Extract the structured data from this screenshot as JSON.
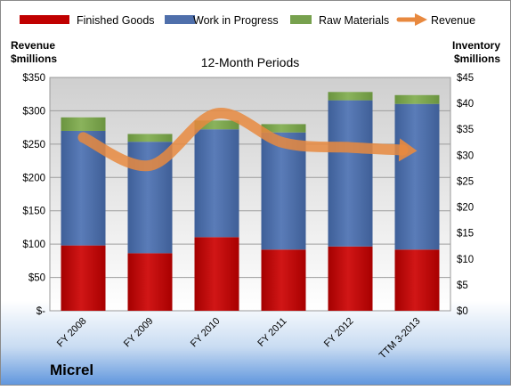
{
  "company": "Micrel",
  "chart_data": {
    "type": "bar",
    "title": "12-Month Periods",
    "left_axis": {
      "label_line1": "Revenue",
      "label_line2": "$millions",
      "range": [
        0,
        350
      ],
      "ticks": [
        0,
        50,
        100,
        150,
        200,
        250,
        300,
        350
      ],
      "tick_labels": [
        "$-",
        "$50",
        "$100",
        "$150",
        "$200",
        "$250",
        "$300",
        "$350"
      ]
    },
    "right_axis": {
      "label_line1": "Inventory",
      "label_line2": "$millions",
      "range": [
        0,
        45
      ],
      "ticks": [
        0,
        5,
        10,
        15,
        20,
        25,
        30,
        35,
        40,
        45
      ],
      "tick_labels": [
        "$0",
        "$5",
        "$10",
        "$15",
        "$20",
        "$25",
        "$30",
        "$35",
        "$40",
        "$45"
      ]
    },
    "categories": [
      "FY 2008",
      "FY 2009",
      "FY 2010",
      "FY 2011",
      "FY 2012",
      "TTM 3-2013"
    ],
    "series": [
      {
        "name": "Finished Goods",
        "kind": "stacked-bar",
        "axis": "right",
        "color": "#c00000",
        "values": [
          12.6,
          11.1,
          14.2,
          11.8,
          12.4,
          11.8
        ]
      },
      {
        "name": "Work in Progress",
        "kind": "stacked-bar",
        "axis": "right",
        "color": "#4f6fab",
        "values": [
          22.1,
          21.5,
          20.8,
          22.6,
          28.2,
          28.1
        ]
      },
      {
        "name": "Raw Materials",
        "kind": "stacked-bar",
        "axis": "right",
        "color": "#77a14e",
        "values": [
          2.6,
          1.5,
          1.7,
          1.6,
          1.6,
          1.7
        ]
      },
      {
        "name": "Revenue",
        "kind": "line",
        "axis": "left",
        "color": "#e8893f",
        "values": [
          260,
          218,
          296,
          252,
          245,
          240
        ]
      }
    ],
    "legend_position": "top",
    "grid": true
  }
}
